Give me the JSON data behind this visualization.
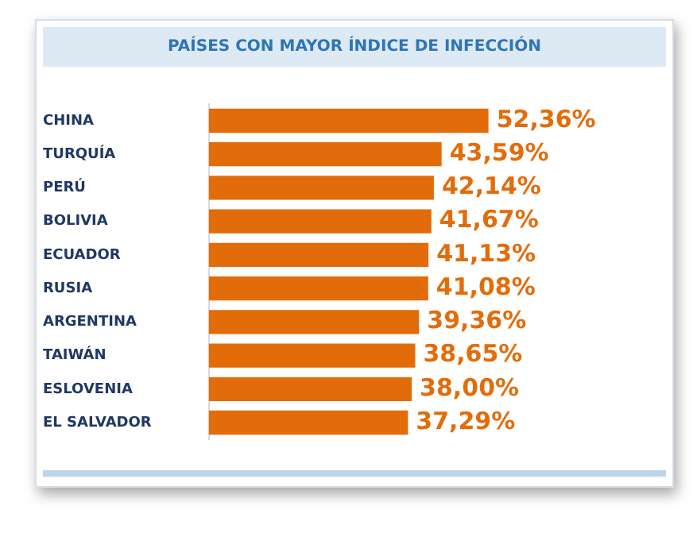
{
  "chart_data": {
    "type": "bar",
    "orientation": "horizontal",
    "title": "PAÍSES CON MAYOR ÍNDICE DE INFECCIÓN",
    "categories": [
      "CHINA",
      "TURQUÍA",
      "PERÚ",
      "BOLIVIA",
      "ECUADOR",
      "RUSIA",
      "ARGENTINA",
      "TAIWÁN",
      "ESLOVENIA",
      "EL SALVADOR"
    ],
    "values": [
      52.36,
      43.59,
      42.14,
      41.67,
      41.13,
      41.08,
      39.36,
      38.65,
      38.0,
      37.29
    ],
    "value_labels": [
      "52,36%",
      "43,59%",
      "42,14%",
      "41,67%",
      "41,13%",
      "41,08%",
      "39,36%",
      "38,65%",
      "38,00%",
      "37,29%"
    ],
    "color": "#e36c0a",
    "legend": false,
    "tick_labels": "y"
  }
}
